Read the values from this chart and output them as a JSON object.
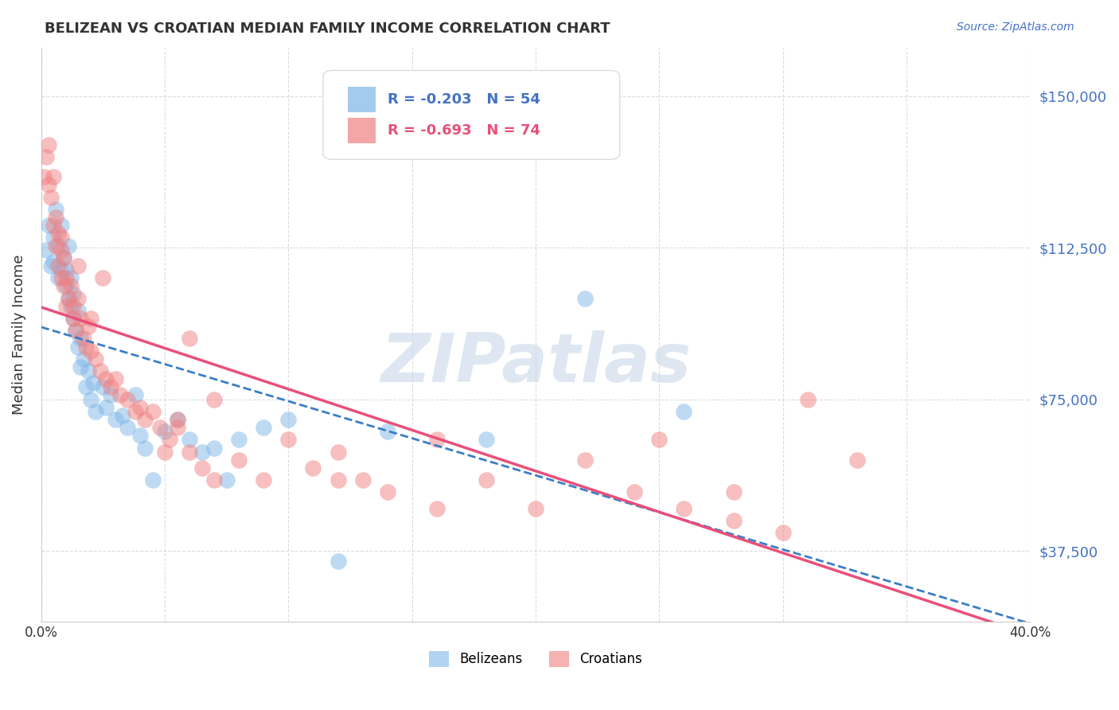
{
  "title": "BELIZEAN VS CROATIAN MEDIAN FAMILY INCOME CORRELATION CHART",
  "source": "Source: ZipAtlas.com",
  "ylabel": "Median Family Income",
  "yticks": [
    37500,
    75000,
    112500,
    150000
  ],
  "ytick_labels": [
    "$37,500",
    "$75,000",
    "$112,500",
    "$150,000"
  ],
  "ymin": 20000,
  "ymax": 162000,
  "xmin": 0.0,
  "xmax": 0.4,
  "belizean_color": "#7EB6E8",
  "croatian_color": "#F08080",
  "belizean_R": -0.203,
  "belizean_N": 54,
  "croatian_R": -0.693,
  "croatian_N": 74,
  "belizean_line_color": "#3A7EC8",
  "croatian_line_color": "#E8507A",
  "watermark": "ZIPatlas",
  "watermark_color": "#C8D8E8",
  "background_color": "#FFFFFF",
  "legend_label_blue": "Belizeans",
  "legend_label_pink": "Croatians",
  "belizean_scatter_x": [
    0.002,
    0.003,
    0.004,
    0.005,
    0.005,
    0.006,
    0.007,
    0.007,
    0.008,
    0.008,
    0.009,
    0.01,
    0.01,
    0.011,
    0.011,
    0.012,
    0.012,
    0.013,
    0.013,
    0.014,
    0.015,
    0.015,
    0.016,
    0.016,
    0.017,
    0.018,
    0.019,
    0.02,
    0.021,
    0.022,
    0.025,
    0.026,
    0.028,
    0.03,
    0.033,
    0.035,
    0.038,
    0.04,
    0.042,
    0.045,
    0.05,
    0.055,
    0.06,
    0.065,
    0.07,
    0.075,
    0.08,
    0.09,
    0.1,
    0.12,
    0.14,
    0.18,
    0.22,
    0.26
  ],
  "belizean_scatter_y": [
    112000,
    118000,
    108000,
    115000,
    109000,
    122000,
    113000,
    105000,
    107000,
    118000,
    110000,
    103000,
    107000,
    113000,
    100000,
    98000,
    105000,
    95000,
    101000,
    92000,
    88000,
    97000,
    83000,
    90000,
    85000,
    78000,
    82000,
    75000,
    79000,
    72000,
    78000,
    73000,
    76000,
    70000,
    71000,
    68000,
    76000,
    66000,
    63000,
    55000,
    67000,
    70000,
    65000,
    62000,
    63000,
    55000,
    65000,
    68000,
    70000,
    35000,
    67000,
    65000,
    100000,
    72000
  ],
  "croatian_scatter_x": [
    0.001,
    0.002,
    0.003,
    0.003,
    0.004,
    0.005,
    0.005,
    0.006,
    0.006,
    0.007,
    0.007,
    0.008,
    0.008,
    0.009,
    0.009,
    0.01,
    0.01,
    0.011,
    0.012,
    0.013,
    0.013,
    0.014,
    0.015,
    0.016,
    0.017,
    0.018,
    0.019,
    0.02,
    0.022,
    0.024,
    0.026,
    0.028,
    0.03,
    0.032,
    0.035,
    0.038,
    0.04,
    0.042,
    0.045,
    0.048,
    0.052,
    0.055,
    0.06,
    0.065,
    0.07,
    0.08,
    0.09,
    0.1,
    0.11,
    0.12,
    0.13,
    0.14,
    0.16,
    0.18,
    0.2,
    0.22,
    0.24,
    0.26,
    0.28,
    0.3,
    0.015,
    0.02,
    0.025,
    0.055,
    0.06,
    0.07,
    0.16,
    0.25,
    0.31,
    0.33,
    0.008,
    0.05,
    0.12,
    0.28
  ],
  "croatian_scatter_y": [
    130000,
    135000,
    128000,
    138000,
    125000,
    130000,
    118000,
    120000,
    113000,
    116000,
    108000,
    112000,
    105000,
    110000,
    103000,
    105000,
    98000,
    100000,
    103000,
    98000,
    95000,
    92000,
    100000,
    95000,
    90000,
    88000,
    93000,
    87000,
    85000,
    82000,
    80000,
    78000,
    80000,
    76000,
    75000,
    72000,
    73000,
    70000,
    72000,
    68000,
    65000,
    70000,
    62000,
    58000,
    55000,
    60000,
    55000,
    65000,
    58000,
    62000,
    55000,
    52000,
    48000,
    55000,
    48000,
    60000,
    52000,
    48000,
    45000,
    42000,
    108000,
    95000,
    105000,
    68000,
    90000,
    75000,
    65000,
    65000,
    75000,
    60000,
    115000,
    62000,
    55000,
    52000
  ]
}
